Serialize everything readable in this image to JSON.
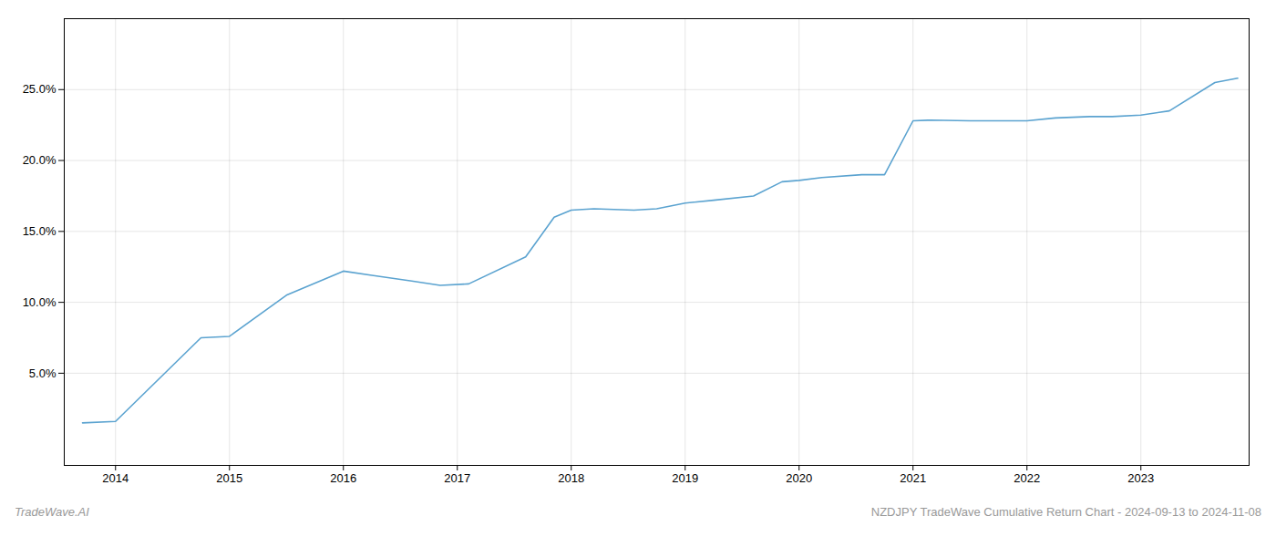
{
  "chart_data": {
    "type": "line",
    "x": [
      2013.71,
      2014.0,
      2014.75,
      2015.0,
      2015.5,
      2016.0,
      2016.25,
      2016.6,
      2016.85,
      2017.1,
      2017.6,
      2017.85,
      2018.0,
      2018.2,
      2018.55,
      2018.75,
      2019.0,
      2019.25,
      2019.6,
      2019.85,
      2020.0,
      2020.2,
      2020.55,
      2020.75,
      2021.0,
      2021.15,
      2021.5,
      2021.75,
      2022.0,
      2022.25,
      2022.55,
      2022.75,
      2023.0,
      2023.25,
      2023.65,
      2023.85
    ],
    "values": [
      1.5,
      1.6,
      7.5,
      7.6,
      10.5,
      12.2,
      11.9,
      11.5,
      11.2,
      11.3,
      13.2,
      16.0,
      16.5,
      16.6,
      16.5,
      16.6,
      17.0,
      17.2,
      17.5,
      18.5,
      18.6,
      18.8,
      19.0,
      19.0,
      22.8,
      22.85,
      22.8,
      22.8,
      22.8,
      23.0,
      23.1,
      23.1,
      23.2,
      23.5,
      25.5,
      25.8
    ],
    "color": "#5ba3d0",
    "xlim": [
      2013.55,
      2023.95
    ],
    "ylim": [
      -1.5,
      30
    ],
    "xticks": [
      2014,
      2015,
      2016,
      2017,
      2018,
      2019,
      2020,
      2021,
      2022,
      2023
    ],
    "yticks": [
      {
        "value": 5.0,
        "label": "5.0%"
      },
      {
        "value": 10.0,
        "label": "10.0%"
      },
      {
        "value": 15.0,
        "label": "15.0%"
      },
      {
        "value": 20.0,
        "label": "20.0%"
      },
      {
        "value": 25.0,
        "label": "25.0%"
      }
    ],
    "grid": true,
    "annotations": [
      "TradeWave.AI",
      "NZDJPY TradeWave Cumulative Return Chart - 2024-09-13 to 2024-11-08"
    ]
  }
}
